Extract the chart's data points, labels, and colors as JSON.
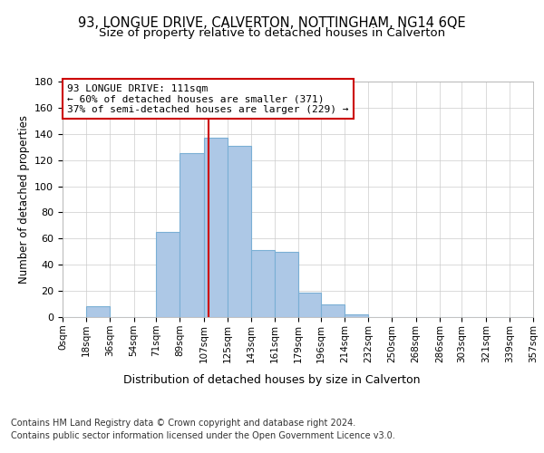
{
  "title1": "93, LONGUE DRIVE, CALVERTON, NOTTINGHAM, NG14 6QE",
  "title2": "Size of property relative to detached houses in Calverton",
  "xlabel": "Distribution of detached houses by size in Calverton",
  "ylabel": "Number of detached properties",
  "annotation_line1": "93 LONGUE DRIVE: 111sqm",
  "annotation_line2": "← 60% of detached houses are smaller (371)",
  "annotation_line3": "37% of semi-detached houses are larger (229) →",
  "footnote1": "Contains HM Land Registry data © Crown copyright and database right 2024.",
  "footnote2": "Contains public sector information licensed under the Open Government Licence v3.0.",
  "bar_edges": [
    0,
    18,
    36,
    54,
    71,
    89,
    107,
    125,
    143,
    161,
    179,
    196,
    214,
    232,
    250,
    268,
    286,
    303,
    321,
    339,
    357
  ],
  "bar_heights": [
    0,
    8,
    0,
    0,
    65,
    125,
    137,
    131,
    51,
    50,
    19,
    10,
    2,
    0,
    0,
    0,
    0,
    0,
    0,
    0
  ],
  "bar_color": "#adc8e6",
  "bar_edge_color": "#7aafd4",
  "property_value": 111,
  "vline_color": "#cc0000",
  "annotation_box_edge_color": "#cc0000",
  "xlim": [
    0,
    357
  ],
  "ylim": [
    0,
    180
  ],
  "yticks": [
    0,
    20,
    40,
    60,
    80,
    100,
    120,
    140,
    160,
    180
  ],
  "xtick_labels": [
    "0sqm",
    "18sqm",
    "36sqm",
    "54sqm",
    "71sqm",
    "89sqm",
    "107sqm",
    "125sqm",
    "143sqm",
    "161sqm",
    "179sqm",
    "196sqm",
    "214sqm",
    "232sqm",
    "250sqm",
    "268sqm",
    "286sqm",
    "303sqm",
    "321sqm",
    "339sqm",
    "357sqm"
  ],
  "grid_color": "#cccccc",
  "bg_color": "#ffffff",
  "title1_fontsize": 10.5,
  "title2_fontsize": 9.5,
  "annotation_fontsize": 8,
  "xlabel_fontsize": 9,
  "footnote_fontsize": 7
}
